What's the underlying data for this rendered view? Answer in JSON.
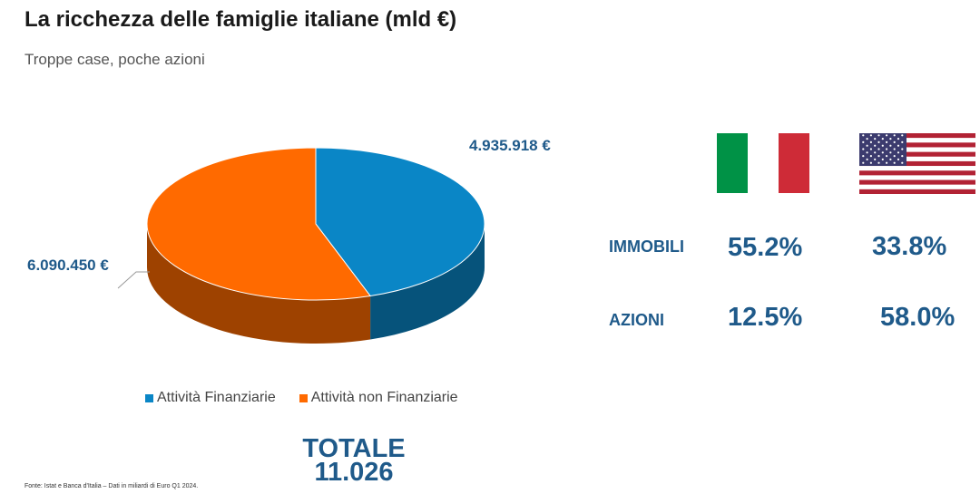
{
  "header": {
    "title": "La ricchezza delle famiglie italiane (mld €)",
    "subtitle": "Troppe case, poche azioni"
  },
  "chart_data": {
    "type": "pie",
    "title": "La ricchezza delle famiglie italiane (mld €)",
    "series": [
      {
        "name": "Attività Finanziarie",
        "value": 4935918,
        "label": "4.935.918 €",
        "color": "#0a86c6"
      },
      {
        "name": "Attività non Finanziarie",
        "value": 6090450,
        "label": "6.090.450 €",
        "color": "#ff6a00"
      }
    ],
    "legend_position": "bottom",
    "total": {
      "label": "TOTALE",
      "value": "11.026"
    }
  },
  "comparison": {
    "countries": [
      {
        "name": "Italia",
        "icon": "italy-flag-icon"
      },
      {
        "name": "USA",
        "icon": "usa-flag-icon"
      }
    ],
    "rows": [
      {
        "label": "IMMOBILI",
        "italy": "55.2%",
        "usa": "33.8%"
      },
      {
        "label": "AZIONI",
        "italy": "12.5%",
        "usa": "58.0%"
      }
    ]
  },
  "footer": {
    "source": "Fonte: Istat e Banca d'Italia – Dati in miliardi di Euro Q1 2024."
  }
}
